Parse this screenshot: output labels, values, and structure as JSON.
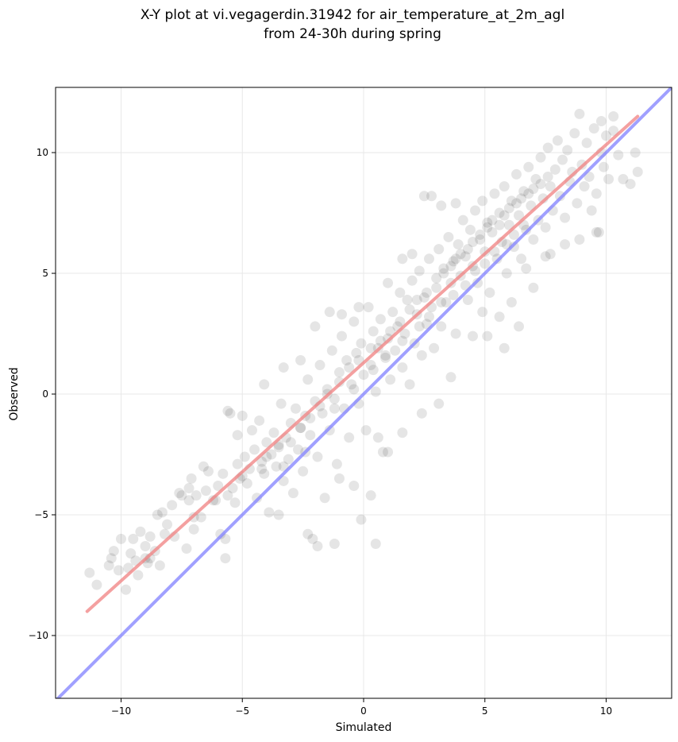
{
  "chart_data": {
    "type": "scatter",
    "title_line1": "X-Y plot at vi.vegagerdin.31942 for air_temperature_at_2m_agl",
    "title_line2": "from 24-30h during spring",
    "xlabel": "Simulated",
    "ylabel": "Observed",
    "xlim": [
      -12.7,
      12.7
    ],
    "ylim": [
      -12.6,
      12.7
    ],
    "xticks": [
      -10,
      -5,
      0,
      5,
      10
    ],
    "yticks": [
      -10,
      -5,
      0,
      5,
      10
    ],
    "xtick_labels": [
      "−10",
      "−5",
      "0",
      "5",
      "10"
    ],
    "ytick_labels": [
      "−10",
      "−5",
      "0",
      "5",
      "10"
    ],
    "grid": true,
    "colors": {
      "points": "#000000",
      "fit_line": "#f08080",
      "identity_line": "#8080ff",
      "grid": "#e8e8e8"
    },
    "fit_line": {
      "x": [
        -11.4,
        11.3
      ],
      "y": [
        -9.0,
        11.5
      ]
    },
    "identity_line": {
      "x": [
        -12.7,
        12.7
      ],
      "y": [
        -12.7,
        12.7
      ]
    },
    "points": [
      [
        -11.3,
        -7.4
      ],
      [
        -11.0,
        -7.9
      ],
      [
        -10.5,
        -7.1
      ],
      [
        -10.4,
        -6.8
      ],
      [
        -10.3,
        -6.5
      ],
      [
        -10.1,
        -7.3
      ],
      [
        -10.0,
        -6.0
      ],
      [
        -9.8,
        -8.1
      ],
      [
        -9.7,
        -7.2
      ],
      [
        -9.6,
        -6.6
      ],
      [
        -9.5,
        -6.0
      ],
      [
        -9.3,
        -7.5
      ],
      [
        -9.2,
        -5.7
      ],
      [
        -9.0,
        -6.3
      ],
      [
        -8.9,
        -7.0
      ],
      [
        -8.8,
        -5.9
      ],
      [
        -8.6,
        -6.5
      ],
      [
        -8.5,
        -5.0
      ],
      [
        -8.4,
        -7.1
      ],
      [
        -8.3,
        -4.9
      ],
      [
        -8.1,
        -5.4
      ],
      [
        -7.9,
        -4.6
      ],
      [
        -7.8,
        -5.9
      ],
      [
        -7.6,
        -4.1
      ],
      [
        -7.5,
        -4.2
      ],
      [
        -7.3,
        -6.4
      ],
      [
        -7.2,
        -4.4
      ],
      [
        -7.1,
        -3.5
      ],
      [
        -7.0,
        -5.6
      ],
      [
        -6.9,
        -4.2
      ],
      [
        -6.7,
        -5.1
      ],
      [
        -6.5,
        -4.0
      ],
      [
        -6.4,
        -3.2
      ],
      [
        -6.2,
        -4.4
      ],
      [
        -6.0,
        -3.8
      ],
      [
        -5.9,
        -5.8
      ],
      [
        -5.8,
        -3.3
      ],
      [
        -5.7,
        -6.8
      ],
      [
        -5.6,
        -4.2
      ],
      [
        -5.5,
        -0.8
      ],
      [
        -5.4,
        -3.9
      ],
      [
        -5.3,
        -4.5
      ],
      [
        -5.2,
        -2.9
      ],
      [
        -5.1,
        -3.5
      ],
      [
        -5.0,
        -0.9
      ],
      [
        -4.9,
        -2.6
      ],
      [
        -4.8,
        -3.7
      ],
      [
        -4.7,
        -3.1
      ],
      [
        -4.6,
        -1.5
      ],
      [
        -4.5,
        -2.3
      ],
      [
        -4.4,
        -4.3
      ],
      [
        -4.3,
        -1.1
      ],
      [
        -4.2,
        -2.8
      ],
      [
        -4.1,
        -3.3
      ],
      [
        -4.0,
        -2.0
      ],
      [
        -3.9,
        -4.9
      ],
      [
        -3.8,
        -2.5
      ],
      [
        -3.7,
        -1.6
      ],
      [
        -3.6,
        -3.0
      ],
      [
        -3.5,
        -2.1
      ],
      [
        -3.4,
        -0.4
      ],
      [
        -3.3,
        -3.6
      ],
      [
        -3.2,
        -1.8
      ],
      [
        -3.1,
        -2.7
      ],
      [
        -3.0,
        -1.2
      ],
      [
        -2.9,
        -4.1
      ],
      [
        -2.8,
        -0.6
      ],
      [
        -2.7,
        -2.3
      ],
      [
        -2.6,
        -1.4
      ],
      [
        -2.5,
        -3.2
      ],
      [
        -2.4,
        -0.9
      ],
      [
        -2.3,
        0.6
      ],
      [
        -2.2,
        -1.7
      ],
      [
        -2.1,
        -6.0
      ],
      [
        -2.0,
        -0.3
      ],
      [
        -1.9,
        -2.6
      ],
      [
        -1.8,
        1.2
      ],
      [
        -1.7,
        -0.8
      ],
      [
        -1.6,
        -4.3
      ],
      [
        -1.5,
        0.2
      ],
      [
        -1.4,
        -1.5
      ],
      [
        -1.3,
        1.8
      ],
      [
        -1.2,
        -0.2
      ],
      [
        -1.1,
        -2.9
      ],
      [
        -1.0,
        0.9
      ],
      [
        -0.9,
        2.4
      ],
      [
        -0.8,
        -0.6
      ],
      [
        -0.7,
        1.4
      ],
      [
        -0.6,
        -1.8
      ],
      [
        -0.5,
        0.4
      ],
      [
        -0.4,
        3.0
      ],
      [
        -0.3,
        1.7
      ],
      [
        -0.2,
        -0.4
      ],
      [
        -0.1,
        2.1
      ],
      [
        0.0,
        0.8
      ],
      [
        0.1,
        -1.5
      ],
      [
        0.2,
        3.6
      ],
      [
        0.3,
        1.2
      ],
      [
        0.4,
        2.6
      ],
      [
        0.5,
        0.1
      ],
      [
        0.6,
        1.9
      ],
      [
        0.7,
        3.1
      ],
      [
        0.8,
        -2.4
      ],
      [
        0.9,
        1.5
      ],
      [
        1.0,
        2.3
      ],
      [
        1.1,
        0.6
      ],
      [
        1.2,
        3.4
      ],
      [
        1.3,
        1.8
      ],
      [
        1.4,
        2.8
      ],
      [
        1.5,
        4.2
      ],
      [
        1.6,
        1.1
      ],
      [
        1.7,
        2.5
      ],
      [
        1.8,
        3.9
      ],
      [
        1.9,
        0.4
      ],
      [
        2.0,
        4.7
      ],
      [
        2.1,
        2.1
      ],
      [
        2.2,
        3.3
      ],
      [
        2.3,
        5.1
      ],
      [
        2.4,
        1.6
      ],
      [
        2.5,
        4.0
      ],
      [
        2.6,
        2.9
      ],
      [
        2.7,
        5.6
      ],
      [
        2.8,
        3.6
      ],
      [
        2.9,
        1.9
      ],
      [
        3.0,
        4.4
      ],
      [
        3.1,
        6.0
      ],
      [
        3.2,
        2.8
      ],
      [
        3.3,
        5.2
      ],
      [
        3.4,
        3.8
      ],
      [
        3.5,
        6.5
      ],
      [
        3.6,
        4.6
      ],
      [
        3.7,
        5.5
      ],
      [
        3.8,
        2.5
      ],
      [
        3.9,
        6.2
      ],
      [
        4.0,
        4.9
      ],
      [
        4.1,
        7.2
      ],
      [
        4.2,
        5.7
      ],
      [
        4.3,
        3.9
      ],
      [
        4.4,
        6.8
      ],
      [
        4.5,
        5.3
      ],
      [
        4.6,
        7.6
      ],
      [
        4.7,
        4.6
      ],
      [
        4.8,
        6.4
      ],
      [
        4.9,
        8.0
      ],
      [
        5.0,
        5.9
      ],
      [
        5.1,
        7.1
      ],
      [
        5.2,
        4.2
      ],
      [
        5.3,
        6.7
      ],
      [
        5.4,
        8.3
      ],
      [
        5.5,
        5.6
      ],
      [
        5.6,
        7.5
      ],
      [
        5.7,
        6.3
      ],
      [
        5.8,
        8.6
      ],
      [
        5.9,
        5.0
      ],
      [
        6.0,
        7.0
      ],
      [
        6.1,
        8.0
      ],
      [
        6.2,
        6.1
      ],
      [
        6.3,
        9.1
      ],
      [
        6.4,
        7.4
      ],
      [
        6.5,
        5.6
      ],
      [
        6.6,
        8.4
      ],
      [
        6.7,
        6.8
      ],
      [
        6.8,
        9.4
      ],
      [
        6.9,
        7.8
      ],
      [
        7.0,
        6.4
      ],
      [
        7.1,
        8.9
      ],
      [
        7.2,
        7.2
      ],
      [
        7.3,
        9.8
      ],
      [
        7.4,
        8.1
      ],
      [
        7.5,
        6.9
      ],
      [
        7.6,
        10.2
      ],
      [
        7.7,
        8.6
      ],
      [
        7.8,
        7.6
      ],
      [
        7.9,
        9.3
      ],
      [
        8.0,
        10.5
      ],
      [
        8.1,
        8.2
      ],
      [
        8.2,
        9.7
      ],
      [
        8.3,
        7.3
      ],
      [
        8.4,
        10.1
      ],
      [
        8.5,
        8.8
      ],
      [
        8.6,
        9.2
      ],
      [
        8.7,
        10.8
      ],
      [
        8.8,
        7.9
      ],
      [
        8.9,
        11.6
      ],
      [
        9.0,
        9.5
      ],
      [
        9.1,
        8.6
      ],
      [
        9.2,
        10.4
      ],
      [
        9.3,
        9.0
      ],
      [
        9.4,
        7.6
      ],
      [
        9.5,
        11.0
      ],
      [
        9.6,
        8.3
      ],
      [
        9.7,
        6.7
      ],
      [
        9.8,
        10.0
      ],
      [
        9.9,
        9.4
      ],
      [
        10.0,
        10.7
      ],
      [
        10.1,
        8.9
      ],
      [
        10.3,
        11.5
      ],
      [
        10.5,
        9.9
      ],
      [
        10.7,
        8.9
      ],
      [
        11.0,
        8.7
      ],
      [
        11.2,
        10.0
      ],
      [
        11.3,
        9.2
      ],
      [
        -9.4,
        -6.9
      ],
      [
        -8.8,
        -6.8
      ],
      [
        -7.2,
        -3.9
      ],
      [
        -6.6,
        -3.0
      ],
      [
        -4.0,
        -2.6
      ],
      [
        -3.5,
        -2.2
      ],
      [
        -3.0,
        -2.0
      ],
      [
        -2.6,
        -1.4
      ],
      [
        -2.2,
        -1.0
      ],
      [
        -1.8,
        -0.5
      ],
      [
        -1.5,
        0.0
      ],
      [
        -1.0,
        0.5
      ],
      [
        -0.6,
        1.1
      ],
      [
        -0.2,
        1.4
      ],
      [
        0.3,
        1.9
      ],
      [
        0.7,
        2.2
      ],
      [
        1.1,
        2.6
      ],
      [
        1.5,
        3.0
      ],
      [
        1.9,
        3.5
      ],
      [
        2.2,
        3.9
      ],
      [
        2.6,
        4.2
      ],
      [
        3.0,
        4.8
      ],
      [
        3.3,
        5.0
      ],
      [
        3.6,
        5.3
      ],
      [
        3.8,
        5.6
      ],
      [
        4.0,
        5.8
      ],
      [
        4.3,
        6.0
      ],
      [
        4.5,
        6.3
      ],
      [
        4.8,
        6.6
      ],
      [
        5.1,
        6.9
      ],
      [
        5.3,
        7.2
      ],
      [
        5.6,
        7.0
      ],
      [
        5.8,
        7.4
      ],
      [
        6.0,
        7.7
      ],
      [
        6.3,
        7.9
      ],
      [
        6.5,
        8.1
      ],
      [
        6.8,
        8.3
      ],
      [
        7.0,
        8.5
      ],
      [
        7.3,
        8.7
      ],
      [
        7.6,
        9.0
      ],
      [
        4.2,
        4.5
      ],
      [
        3.7,
        4.1
      ],
      [
        4.6,
        5.1
      ],
      [
        5.0,
        5.4
      ],
      [
        5.4,
        5.9
      ],
      [
        5.9,
        6.2
      ],
      [
        6.2,
        6.6
      ],
      [
        6.6,
        7.0
      ],
      [
        3.2,
        3.8
      ],
      [
        2.7,
        3.2
      ],
      [
        2.3,
        2.8
      ],
      [
        1.6,
        2.2
      ],
      [
        0.9,
        1.6
      ],
      [
        0.4,
        1.0
      ],
      [
        -0.4,
        0.2
      ],
      [
        -1.2,
        -0.6
      ],
      [
        -2.4,
        -2.4
      ],
      [
        -3.3,
        -3.0
      ],
      [
        -4.2,
        -3.1
      ],
      [
        -5.0,
        -3.4
      ],
      [
        -6.1,
        -4.4
      ],
      [
        -7.0,
        -5.1
      ],
      [
        -8.2,
        -5.8
      ],
      [
        -9.0,
        -6.8
      ],
      [
        0.6,
        -1.8
      ],
      [
        0.3,
        -4.2
      ],
      [
        -0.1,
        -5.2
      ],
      [
        0.5,
        -6.2
      ],
      [
        -1.2,
        -6.2
      ],
      [
        -1.9,
        -6.3
      ],
      [
        -2.3,
        -5.8
      ],
      [
        2.4,
        -0.8
      ],
      [
        3.1,
        -0.4
      ],
      [
        3.6,
        0.7
      ],
      [
        1.6,
        -1.6
      ],
      [
        1.0,
        -2.4
      ],
      [
        -0.4,
        -3.8
      ],
      [
        -1.0,
        -3.5
      ],
      [
        -3.5,
        -5.0
      ],
      [
        -5.7,
        -6.0
      ],
      [
        2.5,
        8.2
      ],
      [
        2.8,
        8.2
      ],
      [
        1.6,
        5.6
      ],
      [
        2.0,
        5.8
      ],
      [
        3.2,
        7.8
      ],
      [
        3.8,
        7.9
      ],
      [
        1.0,
        4.6
      ],
      [
        -0.2,
        3.6
      ],
      [
        -1.4,
        3.4
      ],
      [
        -0.9,
        3.3
      ],
      [
        -2.0,
        2.8
      ],
      [
        -2.6,
        1.4
      ],
      [
        -3.3,
        1.1
      ],
      [
        -4.1,
        0.4
      ],
      [
        -5.6,
        -0.7
      ],
      [
        -5.2,
        -1.7
      ],
      [
        4.5,
        2.4
      ],
      [
        5.1,
        2.4
      ],
      [
        5.8,
        1.9
      ],
      [
        6.4,
        2.8
      ],
      [
        5.6,
        3.2
      ],
      [
        4.9,
        3.4
      ],
      [
        6.1,
        3.8
      ],
      [
        7.0,
        4.4
      ],
      [
        7.7,
        5.8
      ],
      [
        8.3,
        6.2
      ],
      [
        8.9,
        6.4
      ],
      [
        9.6,
        6.7
      ],
      [
        7.5,
        5.7
      ],
      [
        6.7,
        5.2
      ],
      [
        10.3,
        10.9
      ],
      [
        9.8,
        11.3
      ]
    ]
  }
}
